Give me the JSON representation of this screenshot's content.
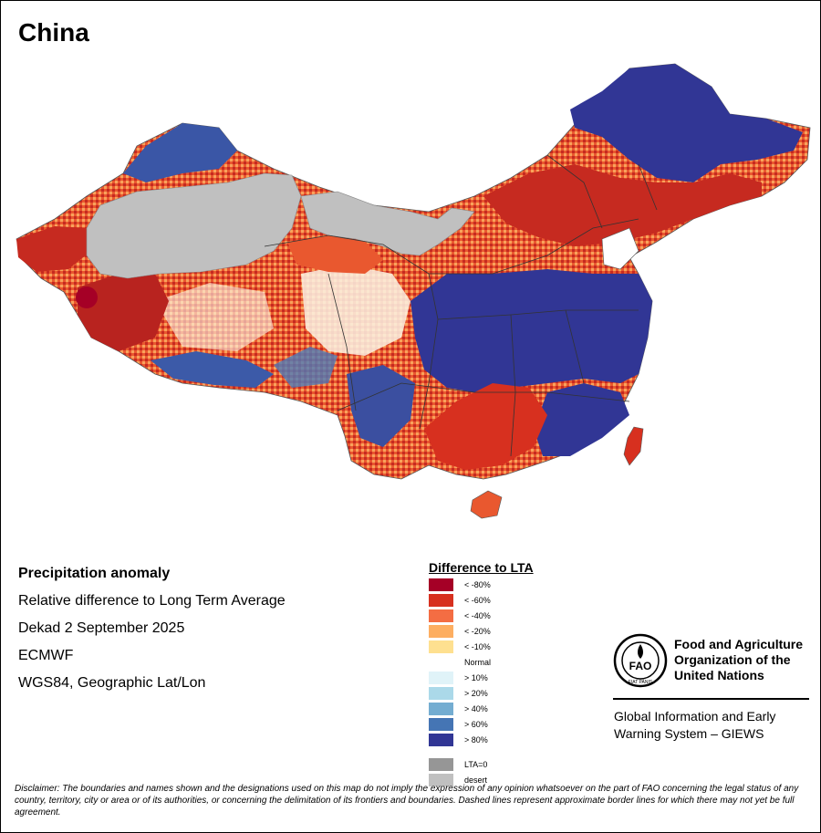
{
  "title": "China",
  "info": {
    "heading": "Precipitation anomaly",
    "line1": "Relative difference to Long Term Average",
    "line2": "Dekad 2 September 2025",
    "line3": "ECMWF",
    "line4": "WGS84, Geographic Lat/Lon"
  },
  "legend": {
    "title": "Difference to LTA",
    "items": [
      {
        "label": "< -80%",
        "color": "#a50026"
      },
      {
        "label": "< -60%",
        "color": "#d7301f"
      },
      {
        "label": "< -40%",
        "color": "#f46d43"
      },
      {
        "label": "< -20%",
        "color": "#fdae61"
      },
      {
        "label": "< -10%",
        "color": "#fee090"
      },
      {
        "label": "Normal",
        "color": "#ffffff"
      },
      {
        "label": "> 10%",
        "color": "#e0f3f8"
      },
      {
        "label": "> 20%",
        "color": "#abd9e9"
      },
      {
        "label": "> 40%",
        "color": "#74add1"
      },
      {
        "label": "> 60%",
        "color": "#4575b4"
      },
      {
        "label": "> 80%",
        "color": "#313695"
      },
      {
        "label": "LTA=0",
        "color": "#969696"
      },
      {
        "label": "desert",
        "color": "#c0c0c0"
      }
    ]
  },
  "organization": {
    "logo_text": "FAO",
    "logo_ring_text": "FIAT PANIS",
    "name_line1": "Food and Agriculture",
    "name_line2": "Organization of the",
    "name_line3": "United Nations",
    "giews_line1": "Global Information and Early",
    "giews_line2": "Warning System – GIEWS"
  },
  "disclaimer": "Disclaimer: The boundaries and names shown and the designations used on this map do not imply the expression of any opinion whatsoever on the part of FAO concerning the legal status of any country, territory, city or area or of its authorities, or concerning the delimitation of its frontiers and boundaries. Dashed lines represent approximate border lines for which there may not yet be full agreement."
}
